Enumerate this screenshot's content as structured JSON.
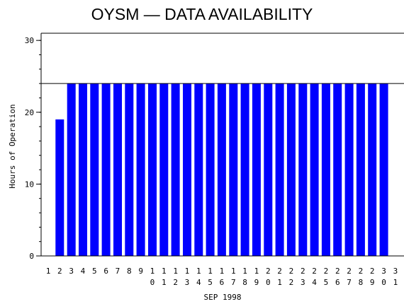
{
  "chart_data": {
    "type": "bar",
    "title": "OYSM — DATA AVAILABILITY",
    "xlabel": "SEP 1998",
    "ylabel": "Hours of Operation",
    "ylim": [
      0,
      31
    ],
    "yticks": [
      0,
      10,
      20,
      30
    ],
    "reference_line": 24,
    "categories": [
      "1",
      "2",
      "3",
      "4",
      "5",
      "6",
      "7",
      "8",
      "9",
      "10",
      "11",
      "12",
      "13",
      "14",
      "15",
      "16",
      "17",
      "18",
      "19",
      "20",
      "21",
      "22",
      "23",
      "24",
      "25",
      "26",
      "27",
      "28",
      "29",
      "30",
      "31"
    ],
    "values": [
      null,
      19,
      24,
      24,
      24,
      24,
      24,
      24,
      24,
      24,
      24,
      24,
      24,
      24,
      24,
      24,
      24,
      24,
      24,
      24,
      24,
      24,
      24,
      24,
      24,
      24,
      24,
      24,
      24,
      24,
      null
    ],
    "bar_color": "#0000ff",
    "grid": false
  }
}
